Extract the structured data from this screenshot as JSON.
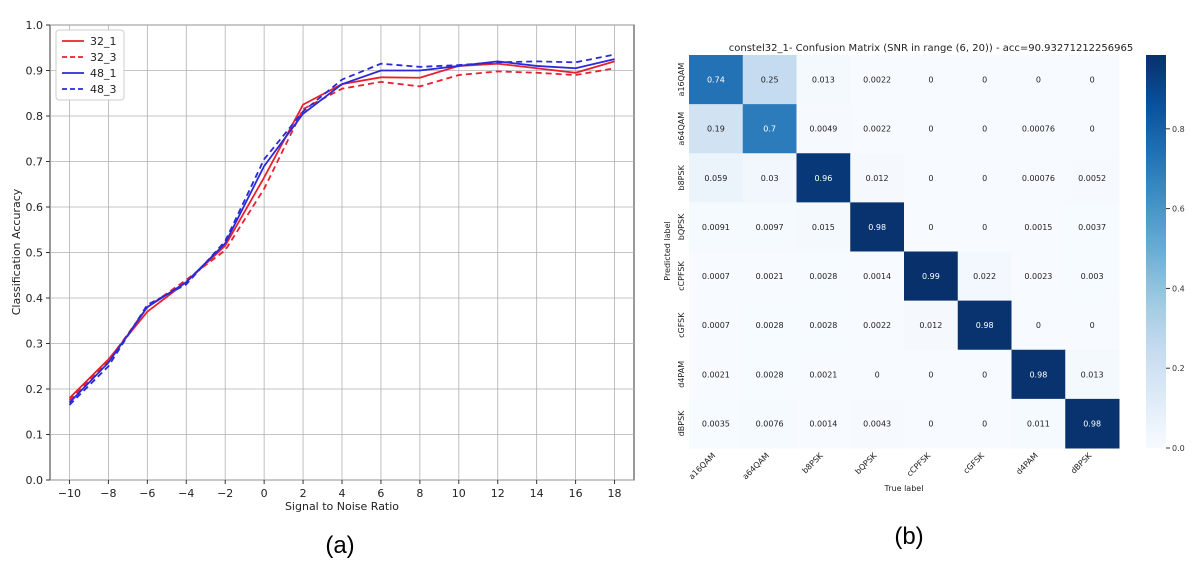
{
  "captions": {
    "a": "(a)",
    "b": "(b)"
  },
  "chart_data": [
    {
      "type": "line",
      "title": "",
      "xlabel": "Signal to Noise Ratio",
      "ylabel": "Classification Accuracy",
      "xlim": [
        -11,
        19
      ],
      "ylim": [
        0,
        1.0
      ],
      "grid": true,
      "legend_position": "top-left",
      "x": [
        -10,
        -8,
        -6,
        -4,
        -2,
        0,
        2,
        4,
        6,
        8,
        10,
        12,
        14,
        16,
        18
      ],
      "x_tick_labels": [
        "−10",
        "−8",
        "−6",
        "−4",
        "−2",
        "0",
        "2",
        "4",
        "6",
        "8",
        "10",
        "12",
        "14",
        "16",
        "18"
      ],
      "y_ticks": [
        0.0,
        0.1,
        0.2,
        0.3,
        0.4,
        0.5,
        0.6,
        0.7,
        0.8,
        0.9,
        1.0
      ],
      "y_tick_labels": [
        "0.0",
        "0.1",
        "0.2",
        "0.3",
        "0.4",
        "0.5",
        "0.6",
        "0.7",
        "0.8",
        "0.9",
        "1.0"
      ],
      "series": [
        {
          "name": "32_1",
          "color": "#e8212f",
          "dash": "solid",
          "values": [
            0.18,
            0.265,
            0.37,
            0.435,
            0.515,
            0.665,
            0.825,
            0.87,
            0.885,
            0.884,
            0.91,
            0.915,
            0.905,
            0.895,
            0.92
          ]
        },
        {
          "name": "32_3",
          "color": "#e8212f",
          "dash": "dashed",
          "values": [
            0.175,
            0.262,
            0.38,
            0.44,
            0.505,
            0.64,
            0.815,
            0.86,
            0.875,
            0.865,
            0.89,
            0.898,
            0.895,
            0.89,
            0.905
          ]
        },
        {
          "name": "48_1",
          "color": "#2a2ad8",
          "dash": "solid",
          "values": [
            0.17,
            0.258,
            0.38,
            0.435,
            0.52,
            0.69,
            0.805,
            0.87,
            0.9,
            0.9,
            0.91,
            0.92,
            0.91,
            0.905,
            0.925
          ]
        },
        {
          "name": "48_3",
          "color": "#2a2ad8",
          "dash": "dashed",
          "values": [
            0.165,
            0.25,
            0.385,
            0.43,
            0.525,
            0.705,
            0.81,
            0.88,
            0.915,
            0.908,
            0.912,
            0.918,
            0.92,
            0.918,
            0.935
          ]
        }
      ]
    },
    {
      "type": "heatmap",
      "title": "constel32_1- Confusion Matrix (SNR in range (6, 20)) - acc=90.93271212256965",
      "xlabel": "True label",
      "ylabel": "Predicted label",
      "colormap": "Blues",
      "colorbar_ticks": [
        0.0,
        0.2,
        0.4,
        0.6,
        0.8
      ],
      "colorbar_tick_labels": [
        "0.0",
        "0.2",
        "0.4",
        "0.6",
        "0.8"
      ],
      "x_labels": [
        "a16QAM",
        "a64QAM",
        "b8PSK",
        "bQPSK",
        "cCPFSK",
        "cGFSK",
        "d4PAM",
        "dBPSK"
      ],
      "y_labels": [
        "a16QAM",
        "a64QAM",
        "b8PSK",
        "bQPSK",
        "cCPFSK",
        "cGFSK",
        "d4PAM",
        "dBPSK"
      ],
      "values": [
        [
          0.74,
          0.25,
          0.013,
          0.0022,
          0,
          0,
          0,
          0
        ],
        [
          0.19,
          0.7,
          0.0049,
          0.0022,
          0,
          0,
          0.00076,
          0
        ],
        [
          0.059,
          0.03,
          0.96,
          0.012,
          0,
          0,
          0.00076,
          0.0052
        ],
        [
          0.0091,
          0.0097,
          0.015,
          0.98,
          0,
          0,
          0.0015,
          0.0037
        ],
        [
          0.0007,
          0.0021,
          0.0028,
          0.0014,
          0.99,
          0.022,
          0.0023,
          0.003
        ],
        [
          0.0007,
          0.0028,
          0.0028,
          0.0022,
          0.012,
          0.98,
          0,
          0
        ],
        [
          0.0021,
          0.0028,
          0.0021,
          0,
          0,
          0,
          0.98,
          0.013
        ],
        [
          0.0035,
          0.0076,
          0.0014,
          0.0043,
          0,
          0,
          0.011,
          0.98
        ]
      ]
    }
  ]
}
